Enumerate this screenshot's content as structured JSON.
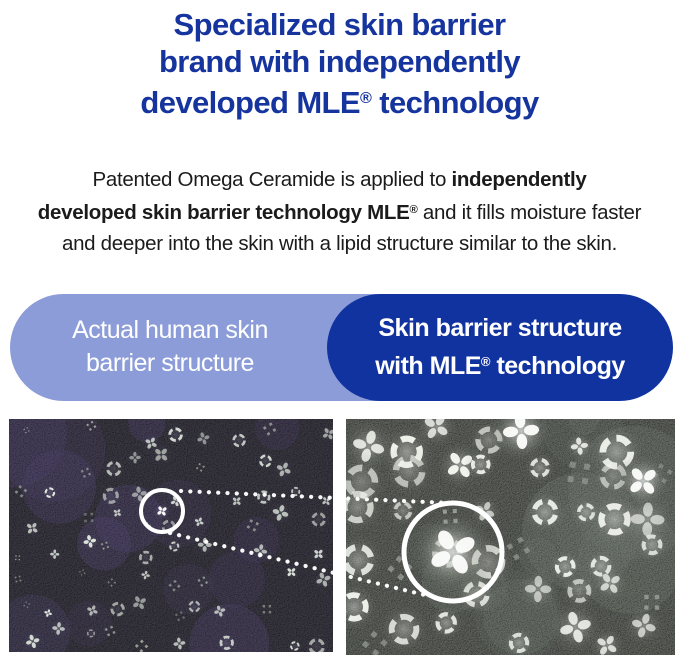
{
  "colors": {
    "brand-blue": "#16349E",
    "pill-light": "#8C9CD8",
    "pill-dark": "#1133A0",
    "body-text": "#1B1B1B",
    "pill-text": "#FFFFFF",
    "page-bg": "#FFFFFF"
  },
  "heading": {
    "line1": "Specialized skin barrier",
    "line2": "brand with independently",
    "line3_pre": "developed MLE",
    "line3_mark": "®",
    "line3_post": " technology"
  },
  "intro": {
    "line1_normal": "Patented Omega Ceramide is applied to ",
    "line1_bold": "independently",
    "line2_bold": "developed skin barrier technology MLE",
    "line2_mark": "®",
    "line2_normal": " and it fills moisture faster",
    "line3": "and deeper into the skin with a lipid structure similar to the skin."
  },
  "pills": {
    "left": {
      "line1": "Actual human skin",
      "line2": "barrier structure"
    },
    "right": {
      "line1": "Skin barrier structure",
      "line2_pre": "with MLE",
      "line2_mark": "®",
      "line2_post": " technology"
    }
  },
  "figures": {
    "left_alt": "Polarized-light micrograph of actual human skin barrier: small faint Maltese-cross lipid patterns on a dark field with a small highlight circle",
    "right_alt": "Polarized-light micrograph of skin barrier with MLE technology: larger brighter Maltese-cross lipid patterns magnified by a large circle"
  }
}
